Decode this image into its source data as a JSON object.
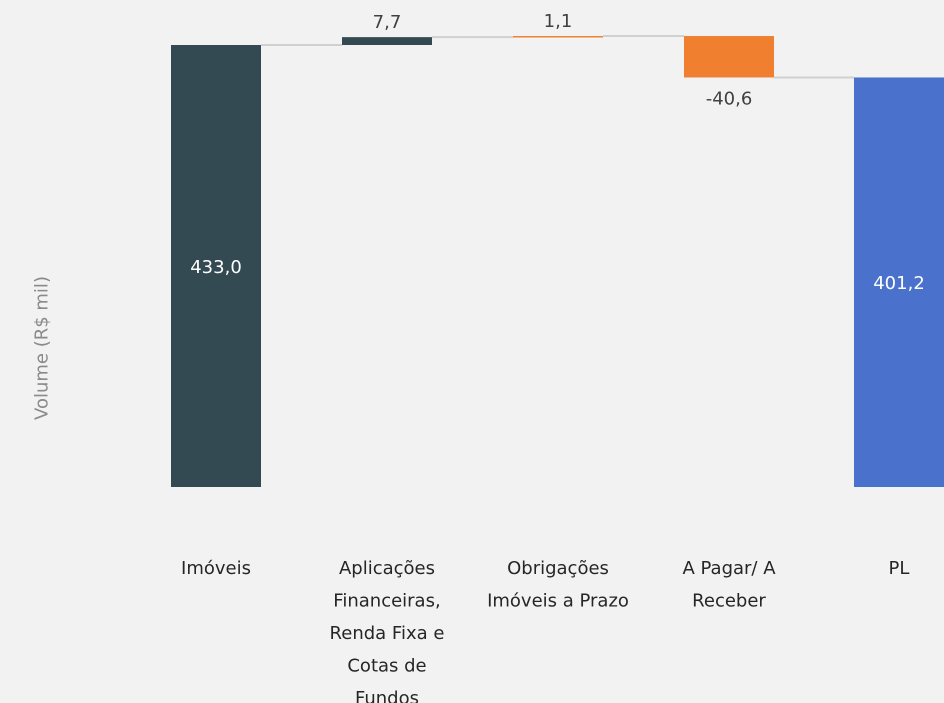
{
  "chart_data": {
    "type": "bar",
    "subtype": "waterfall",
    "ylabel": "Volume (R$ mil)",
    "xlabel": "",
    "title": "",
    "categories": [
      "Imóveis",
      "Aplicações Financeiras, Renda Fixa e Cotas de Fundos",
      "Obrigações Imóveis a Prazo",
      "A Pagar/ A Receber",
      "PL"
    ],
    "category_lines": [
      [
        "Imóveis"
      ],
      [
        "Aplicações",
        "Financeiras,",
        "Renda Fixa e",
        "Cotas de",
        "Fundos"
      ],
      [
        "Obrigações",
        "Imóveis a Prazo"
      ],
      [
        "A Pagar/ A",
        "Receber"
      ],
      [
        "PL"
      ]
    ],
    "values": [
      433.0,
      7.7,
      1.1,
      -40.6,
      401.2
    ],
    "value_labels": [
      "433,0",
      "7,7",
      "1,1",
      "-40,6",
      "401,2"
    ],
    "measure": [
      "absolute",
      "relative",
      "relative",
      "relative",
      "total"
    ],
    "colors": [
      "#344a52",
      "#344a52",
      "#f08030",
      "#f08030",
      "#4a72cc"
    ],
    "connector_color": "#d0d0d0",
    "grid": false,
    "legend": "none"
  }
}
